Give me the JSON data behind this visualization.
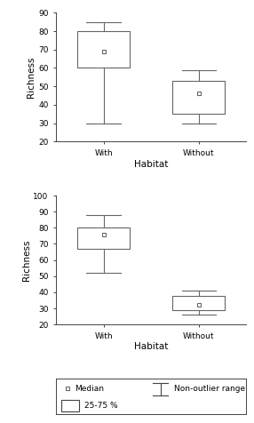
{
  "top_chart": {
    "ylim": [
      20,
      90
    ],
    "yticks": [
      20,
      30,
      40,
      50,
      60,
      70,
      80,
      90
    ],
    "ylabel": "Richness",
    "xlabel": "Habitat",
    "xtick_labels": [
      "With",
      "Without"
    ],
    "boxes": [
      {
        "label": "With",
        "x": 1,
        "q1": 60,
        "median": 69,
        "q3": 80,
        "whisker_low": 30,
        "whisker_high": 85
      },
      {
        "label": "Without",
        "x": 2,
        "q1": 35,
        "median": 46,
        "q3": 53,
        "whisker_low": 30,
        "whisker_high": 59
      }
    ]
  },
  "bottom_chart": {
    "ylim": [
      20,
      100
    ],
    "yticks": [
      20,
      30,
      40,
      50,
      60,
      70,
      80,
      90,
      100
    ],
    "ylabel": "Richness",
    "xlabel": "Habitat",
    "xtick_labels": [
      "With",
      "Without"
    ],
    "boxes": [
      {
        "label": "With",
        "x": 1,
        "q1": 67,
        "median": 76,
        "q3": 80,
        "whisker_low": 52,
        "whisker_high": 88
      },
      {
        "label": "Without",
        "x": 2,
        "q1": 29,
        "median": 32,
        "q3": 38,
        "whisker_low": 26,
        "whisker_high": 41
      }
    ]
  },
  "box_color": "#ffffff",
  "box_edge_color": "#666666",
  "median_marker": "s",
  "median_marker_size": 3.5,
  "median_marker_color": "#666666",
  "median_marker_facecolor": "#ffffff",
  "whisker_color": "#666666",
  "cap_color": "#666666",
  "box_width": 0.55,
  "background_color": "#ffffff",
  "legend_fontsize": 6.5,
  "axis_fontsize": 7.5,
  "tick_fontsize": 6.5
}
